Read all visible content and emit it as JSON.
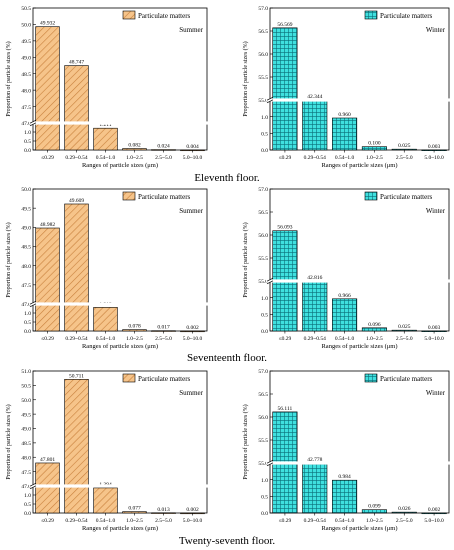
{
  "chart_data": [
    {
      "type": "bar",
      "id": "c11s",
      "legend": "Particulate matters",
      "season": "Summer",
      "pattern": "hatch",
      "categories": [
        "≤0.29",
        "0.29~0.54",
        "0.54~1.0",
        "1.0~2.5",
        "2.5~5.0",
        "5.0~10.0"
      ],
      "values": [
        49.932,
        48.747,
        1.211,
        0.082,
        0.024,
        0.004
      ],
      "value_labels": [
        "49.932",
        "48.747",
        "1.211",
        "0.082",
        "0.024",
        "0.004"
      ],
      "xlabel": "Ranges of particle sizes (μm)",
      "ylabel": "Proportion of particle sizes (%)",
      "axis_break": true,
      "ylim_lower": [
        0,
        1.5
      ],
      "ylim_upper": [
        47.0,
        50.5
      ],
      "yticks_lower": [
        "0.0",
        "0.5",
        "1.0"
      ],
      "yticks_upper": [
        "47.0",
        "47.5",
        "48.0",
        "48.5",
        "49.0",
        "49.5",
        "50.0",
        "50.5"
      ]
    },
    {
      "type": "bar",
      "id": "c11w",
      "legend": "Particulate matters",
      "season": "Winter",
      "pattern": "grid",
      "categories": [
        "≤0.29",
        "0.29~0.54",
        "0.54~1.0",
        "1.0~2.5",
        "2.5~5.0",
        "5.0~10.0"
      ],
      "values": [
        56.569,
        42.344,
        0.96,
        0.1,
        0.025,
        0.003
      ],
      "value_labels": [
        "56.569",
        "42.344",
        "0.960",
        "0.100",
        "0.025",
        "0.003"
      ],
      "xlabel": "Ranges of particle sizes (μm)",
      "ylabel": "Proportion of particle sizes (%)",
      "axis_break": true,
      "ylim_lower": [
        0,
        1.5
      ],
      "ylim_upper": [
        55.0,
        57.0
      ],
      "yticks_lower": [
        "0.0",
        "0.5",
        "1.0"
      ],
      "yticks_upper": [
        "55.0",
        "55.5",
        "56.0",
        "56.5",
        "57.0"
      ]
    },
    {
      "type": "bar",
      "id": "c17s",
      "legend": "Particulate matters",
      "season": "Summer",
      "pattern": "hatch",
      "categories": [
        "≤0.29",
        "0.29~0.54",
        "0.54~1.0",
        "1.0~2.5",
        "2.5~5.0",
        "5.0~10.0"
      ],
      "values": [
        48.982,
        49.609,
        1.312,
        0.078,
        0.017,
        0.002
      ],
      "value_labels": [
        "48.982",
        "49.609",
        "1.312",
        "0.078",
        "0.017",
        "0.002"
      ],
      "xlabel": "Ranges of particle sizes (μm)",
      "ylabel": "Proportion of particle sizes (%)",
      "axis_break": true,
      "ylim_lower": [
        0,
        1.5
      ],
      "ylim_upper": [
        47.0,
        50.0
      ],
      "yticks_lower": [
        "0.0",
        "0.5",
        "1.0"
      ],
      "yticks_upper": [
        "47.0",
        "47.5",
        "48.0",
        "48.5",
        "49.0",
        "49.5",
        "50.0"
      ]
    },
    {
      "type": "bar",
      "id": "c17w",
      "legend": "Particulate matters",
      "season": "Winter",
      "pattern": "grid",
      "categories": [
        "≤0.29",
        "0.29~0.54",
        "0.54~1.0",
        "1.0~2.5",
        "2.5~5.0",
        "5.0~10.0"
      ],
      "values": [
        56.093,
        42.816,
        0.966,
        0.096,
        0.025,
        0.003
      ],
      "value_labels": [
        "56.093",
        "42.816",
        "0.966",
        "0.096",
        "0.025",
        "0.003"
      ],
      "xlabel": "Ranges of particle sizes (μm)",
      "ylabel": "Proportion of particle sizes (%)",
      "axis_break": true,
      "ylim_lower": [
        0,
        1.5
      ],
      "ylim_upper": [
        55.0,
        57.0
      ],
      "yticks_lower": [
        "0.0",
        "0.5",
        "1.0"
      ],
      "yticks_upper": [
        "55.0",
        "55.5",
        "56.0",
        "56.5",
        "57.0"
      ]
    },
    {
      "type": "bar",
      "id": "c27s",
      "legend": "Particulate matters",
      "season": "Summer",
      "pattern": "hatch",
      "categories": [
        "≤0.29",
        "0.29~0.54",
        "0.54~1.0",
        "1.0~2.5",
        "2.5~5.0",
        "5.0~10.0"
      ],
      "values": [
        47.801,
        50.711,
        1.394,
        0.077,
        0.013,
        0.002
      ],
      "value_labels": [
        "47.801",
        "50.711",
        "1.394",
        "0.077",
        "0.013",
        "0.002"
      ],
      "xlabel": "Ranges of particle sizes (μm)",
      "ylabel": "Proportion of particle sizes (%)",
      "axis_break": true,
      "ylim_lower": [
        0,
        1.5
      ],
      "ylim_upper": [
        47.0,
        51.0
      ],
      "yticks_lower": [
        "0.0",
        "0.5",
        "1.0"
      ],
      "yticks_upper": [
        "47.0",
        "47.5",
        "48.0",
        "48.5",
        "49.0",
        "49.5",
        "50.0",
        "50.5",
        "51.0"
      ]
    },
    {
      "type": "bar",
      "id": "c27w",
      "legend": "Particulate matters",
      "season": "Winter",
      "pattern": "grid",
      "categories": [
        "≤0.29",
        "0.29~0.54",
        "0.54~1.0",
        "1.0~2.5",
        "2.5~5.0",
        "5.0~10.0"
      ],
      "values": [
        56.111,
        42.778,
        0.984,
        0.099,
        0.026,
        0.002
      ],
      "value_labels": [
        "56.111",
        "42.778",
        "0.984",
        "0.099",
        "0.026",
        "0.002"
      ],
      "xlabel": "Ranges of particle sizes (μm)",
      "ylabel": "Proportion of particle sizes (%)",
      "axis_break": true,
      "ylim_lower": [
        0,
        1.5
      ],
      "ylim_upper": [
        55.0,
        57.0
      ],
      "yticks_lower": [
        "0.0",
        "0.5",
        "1.0"
      ],
      "yticks_upper": [
        "55.0",
        "55.5",
        "56.0",
        "56.5",
        "57.0"
      ]
    }
  ],
  "captions": {
    "eleventh": "Eleventh floor.",
    "seventeenth": "Seventeenth floor.",
    "twentyseventh": "Twenty-seventh floor."
  },
  "colors": {
    "summer_fill": "#f6c48a",
    "summer_hatch": "#c8803c",
    "winter_fill": "#3fe0df",
    "winter_grid": "#0a6e78",
    "axis": "#000000"
  }
}
